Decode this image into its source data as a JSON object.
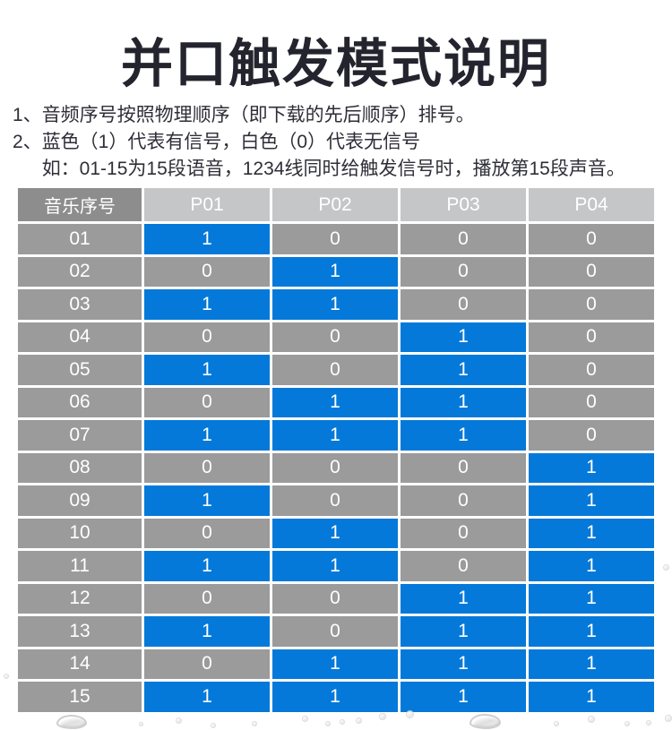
{
  "page": {
    "title": "并口触发模式说明",
    "notes": [
      {
        "num": "1、",
        "text": "音频序号按照物理顺序（即下载的先后顺序）排号。",
        "sub": ""
      },
      {
        "num": "2、",
        "text": "蓝色（1）代表有信号，白色（0）代表无信号",
        "sub": "如：01-15为15段语音，1234线同时给触发信号时，播放第15段声音。"
      }
    ]
  },
  "table": {
    "header": {
      "label_col": "音乐序号",
      "signal_cols": [
        "P01",
        "P02",
        "P03",
        "P04"
      ]
    },
    "rows": [
      {
        "label": "01",
        "values": [
          1,
          0,
          0,
          0
        ]
      },
      {
        "label": "02",
        "values": [
          0,
          1,
          0,
          0
        ]
      },
      {
        "label": "03",
        "values": [
          1,
          1,
          0,
          0
        ]
      },
      {
        "label": "04",
        "values": [
          0,
          0,
          1,
          0
        ]
      },
      {
        "label": "05",
        "values": [
          1,
          0,
          1,
          0
        ]
      },
      {
        "label": "06",
        "values": [
          0,
          1,
          1,
          0
        ]
      },
      {
        "label": "07",
        "values": [
          1,
          1,
          1,
          0
        ]
      },
      {
        "label": "08",
        "values": [
          0,
          0,
          0,
          1
        ]
      },
      {
        "label": "09",
        "values": [
          1,
          0,
          0,
          1
        ]
      },
      {
        "label": "10",
        "values": [
          0,
          1,
          0,
          1
        ]
      },
      {
        "label": "11",
        "values": [
          1,
          1,
          0,
          1
        ]
      },
      {
        "label": "12",
        "values": [
          0,
          0,
          1,
          1
        ]
      },
      {
        "label": "13",
        "values": [
          1,
          0,
          1,
          1
        ]
      },
      {
        "label": "14",
        "values": [
          0,
          1,
          1,
          1
        ]
      },
      {
        "label": "15",
        "values": [
          1,
          1,
          1,
          1
        ]
      }
    ]
  },
  "colors": {
    "signal_on_blue": "#0479d9",
    "signal_off_gray": "#9b9b9b",
    "header_label_gray": "#8d8d8d",
    "header_signal_gray": "#c5c6c8",
    "title_color": "#24242e",
    "note_color": "#2e2e38"
  }
}
